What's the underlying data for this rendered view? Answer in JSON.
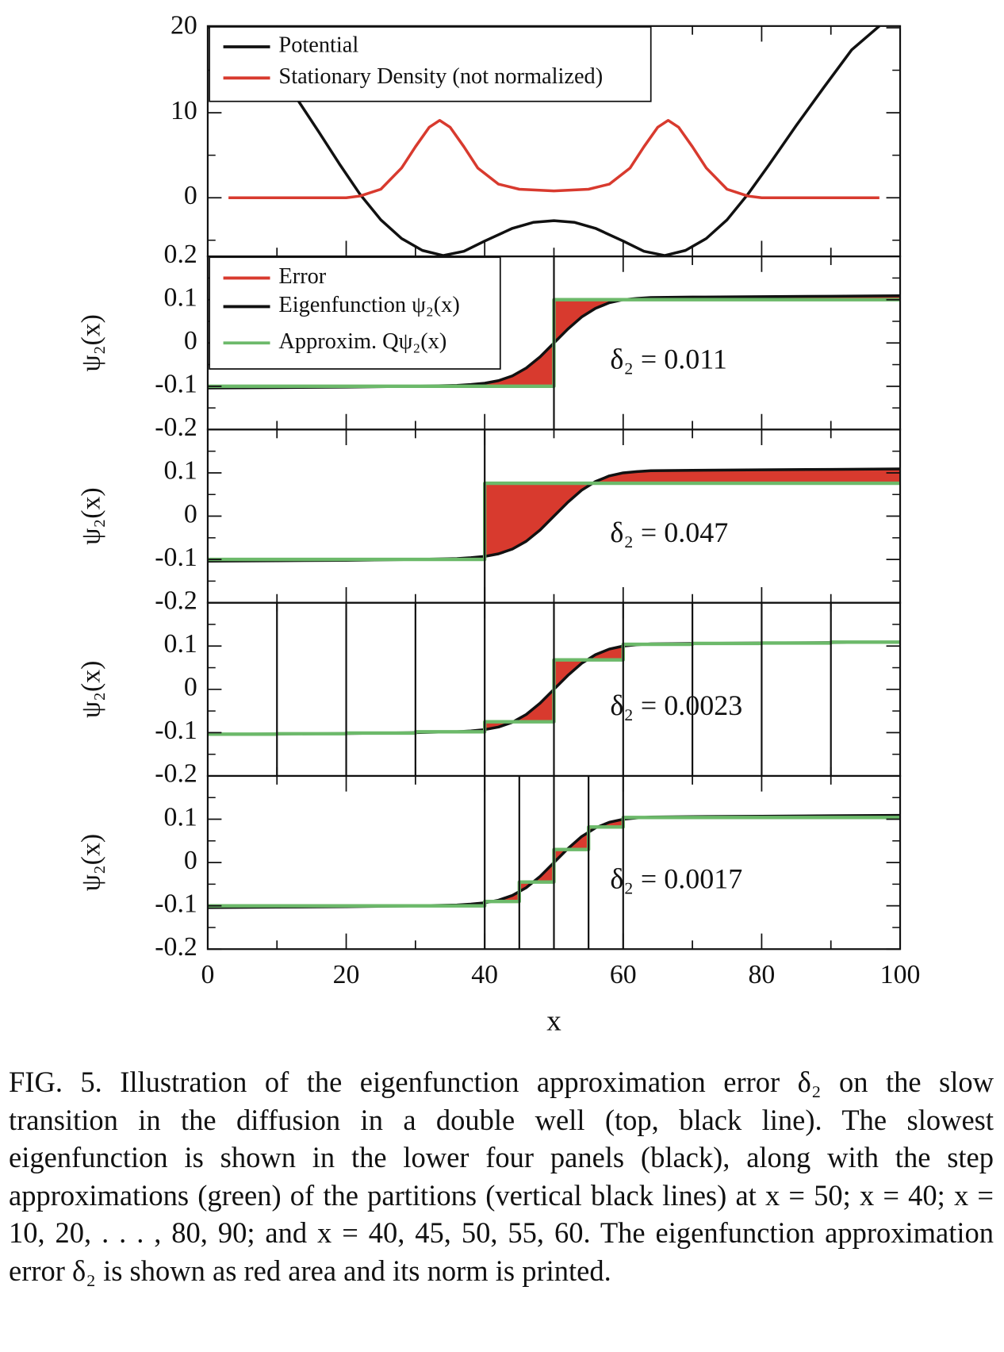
{
  "chart_data": [
    {
      "type": "line",
      "xlim": [
        0,
        100
      ],
      "ylim": [
        -6.9,
        20.2
      ],
      "yticks": [
        0,
        10,
        20
      ],
      "yminor": [
        -5,
        5,
        15
      ],
      "series": [
        {
          "name": "Potential",
          "color": "#111111",
          "x": [
            13,
            16,
            19,
            22,
            25,
            28,
            31,
            34,
            37,
            40,
            44,
            47,
            50,
            53,
            56,
            60,
            63,
            66,
            69,
            72,
            75,
            78,
            81,
            85,
            89,
            93,
            97
          ],
          "values": [
            11.5,
            7.8,
            4.0,
            0.4,
            -2.6,
            -4.8,
            -6.2,
            -6.8,
            -6.3,
            -5.1,
            -3.6,
            -2.9,
            -2.7,
            -2.9,
            -3.6,
            -5.1,
            -6.3,
            -6.8,
            -6.2,
            -4.8,
            -2.6,
            0.4,
            3.8,
            8.5,
            13,
            17.4,
            20.2
          ]
        },
        {
          "name": "Stationary Density (not normalized)",
          "color": "#d83a2e",
          "x": [
            3,
            20,
            22,
            25,
            28,
            30,
            32,
            33.5,
            35,
            37,
            39,
            42,
            45,
            50,
            55,
            58,
            61,
            63,
            65,
            66.5,
            68,
            70,
            72,
            75,
            78,
            80,
            97
          ],
          "values": [
            0,
            0,
            0.2,
            1,
            3.5,
            6,
            8.3,
            9.1,
            8.3,
            6,
            3.5,
            1.6,
            1,
            0.8,
            1,
            1.6,
            3.5,
            6,
            8.3,
            9.1,
            8.3,
            6,
            3.5,
            1,
            0.2,
            0,
            0
          ]
        }
      ]
    },
    {
      "type": "step-error",
      "xlim": [
        0,
        100
      ],
      "ylim": [
        -0.2,
        0.2
      ],
      "yticks": [
        -0.2,
        -0.1,
        0,
        0.1,
        0.2
      ],
      "yminor": [
        -0.15,
        -0.05,
        0.05,
        0.15
      ],
      "ylabel": "ψ₂(x)",
      "error": {
        "name": "Error",
        "color": "#d83a2e"
      },
      "partitions": [
        50
      ],
      "annotation": "δ₂ = 0.011",
      "series": [
        {
          "name": "Eigenfunction ψ₂(x)",
          "color": "#111111",
          "x": [
            0,
            10,
            20,
            30,
            36,
            38,
            40,
            42,
            44,
            46,
            48,
            50,
            52,
            54,
            56,
            58,
            60,
            62,
            64,
            70,
            80,
            90,
            100
          ],
          "values": [
            -0.104,
            -0.103,
            -0.102,
            -0.1,
            -0.098,
            -0.096,
            -0.093,
            -0.087,
            -0.076,
            -0.058,
            -0.032,
            0,
            0.032,
            0.06,
            0.08,
            0.093,
            0.1,
            0.103,
            0.105,
            0.106,
            0.107,
            0.108,
            0.109
          ]
        },
        {
          "name": "Approxim. Qψ₂(x)",
          "color": "#6cb96a",
          "x": [
            0,
            50,
            50,
            100
          ],
          "values": [
            -0.1,
            -0.1,
            0.1,
            0.1
          ]
        }
      ]
    },
    {
      "type": "step-error",
      "xlim": [
        0,
        100
      ],
      "ylim": [
        -0.2,
        0.2
      ],
      "yticks": [
        -0.2,
        -0.1,
        0,
        0.1
      ],
      "yminor": [
        -0.15,
        -0.05,
        0.05,
        0.15
      ],
      "ylabel": "ψ₂(x)",
      "error": {
        "color": "#d83a2e"
      },
      "partitions": [
        40
      ],
      "annotation": "δ₂ = 0.047",
      "series": [
        {
          "color": "#111111",
          "x": [
            0,
            10,
            20,
            30,
            36,
            38,
            40,
            42,
            44,
            46,
            48,
            50,
            52,
            54,
            56,
            58,
            60,
            62,
            64,
            70,
            80,
            90,
            100
          ],
          "values": [
            -0.104,
            -0.103,
            -0.102,
            -0.1,
            -0.098,
            -0.096,
            -0.093,
            -0.087,
            -0.076,
            -0.058,
            -0.032,
            0,
            0.032,
            0.06,
            0.08,
            0.093,
            0.1,
            0.103,
            0.105,
            0.106,
            0.107,
            0.108,
            0.109
          ]
        },
        {
          "color": "#6cb96a",
          "x": [
            0,
            40,
            40,
            100
          ],
          "values": [
            -0.1,
            -0.1,
            0.076,
            0.076
          ]
        }
      ]
    },
    {
      "type": "step-error",
      "xlim": [
        0,
        100
      ],
      "ylim": [
        -0.2,
        0.2
      ],
      "yticks": [
        -0.2,
        -0.1,
        0,
        0.1
      ],
      "yminor": [
        -0.15,
        -0.05,
        0.05,
        0.15
      ],
      "ylabel": "ψ₂(x)",
      "error": {
        "color": "#d83a2e"
      },
      "partitions": [
        10,
        20,
        30,
        40,
        50,
        60,
        70,
        80,
        90
      ],
      "annotation": "δ₂ = 0.0023",
      "series": [
        {
          "color": "#111111",
          "x": [
            0,
            10,
            20,
            30,
            36,
            38,
            40,
            42,
            44,
            46,
            48,
            50,
            52,
            54,
            56,
            58,
            60,
            62,
            64,
            70,
            80,
            90,
            100
          ],
          "values": [
            -0.104,
            -0.103,
            -0.102,
            -0.1,
            -0.098,
            -0.096,
            -0.093,
            -0.087,
            -0.076,
            -0.058,
            -0.032,
            0,
            0.032,
            0.06,
            0.08,
            0.093,
            0.1,
            0.103,
            0.105,
            0.106,
            0.107,
            0.108,
            0.109
          ]
        },
        {
          "color": "#6cb96a",
          "x": [
            0,
            10,
            10,
            20,
            20,
            30,
            30,
            40,
            40,
            50,
            50,
            60,
            60,
            70,
            70,
            80,
            80,
            90,
            90,
            100
          ],
          "values": [
            -0.1035,
            -0.1035,
            -0.1025,
            -0.1025,
            -0.101,
            -0.101,
            -0.098,
            -0.098,
            -0.075,
            -0.075,
            0.068,
            0.068,
            0.104,
            0.104,
            0.106,
            0.106,
            0.107,
            0.107,
            0.109,
            0.109
          ]
        }
      ]
    },
    {
      "type": "step-error",
      "xlim": [
        0,
        100
      ],
      "ylim": [
        -0.2,
        0.2
      ],
      "yticks": [
        -0.2,
        -0.1,
        0,
        0.1
      ],
      "yminor": [
        -0.15,
        -0.05,
        0.05,
        0.15
      ],
      "ylabel": "ψ₂(x)",
      "xticks": [
        0,
        20,
        40,
        60,
        80,
        100
      ],
      "xminor": [
        10,
        30,
        50,
        70,
        90
      ],
      "xlabel": "x",
      "error": {
        "color": "#d83a2e"
      },
      "partitions": [
        40,
        45,
        50,
        55,
        60
      ],
      "annotation": "δ₂ = 0.0017",
      "series": [
        {
          "color": "#111111",
          "x": [
            0,
            10,
            20,
            30,
            36,
            38,
            40,
            42,
            44,
            46,
            48,
            50,
            52,
            54,
            56,
            58,
            60,
            62,
            64,
            70,
            80,
            90,
            100
          ],
          "values": [
            -0.104,
            -0.103,
            -0.102,
            -0.1,
            -0.098,
            -0.096,
            -0.093,
            -0.087,
            -0.076,
            -0.058,
            -0.032,
            0,
            0.032,
            0.06,
            0.08,
            0.093,
            0.1,
            0.103,
            0.105,
            0.106,
            0.107,
            0.108,
            0.109
          ]
        },
        {
          "color": "#6cb96a",
          "x": [
            0,
            40,
            40,
            45,
            45,
            50,
            50,
            55,
            55,
            60,
            60,
            100
          ],
          "values": [
            -0.1,
            -0.1,
            -0.09,
            -0.09,
            -0.045,
            -0.045,
            0.03,
            0.03,
            0.082,
            0.082,
            0.104,
            0.104
          ]
        }
      ]
    }
  ],
  "caption": "FIG. 5. Illustration of the eigenfunction approximation error δ₂ on the slow transition in the diffusion in a double well (top, black line). The slowest eigenfunction is shown in the lower four panels (black), along with the step approximations (green) of the partitions (vertical black lines) at x = 50; x = 40; x = 10, 20, . . . , 80, 90; and x = 40, 45, 50, 55, 60. The eigenfunction approximation error δ₂ is shown as red area and its norm is printed."
}
